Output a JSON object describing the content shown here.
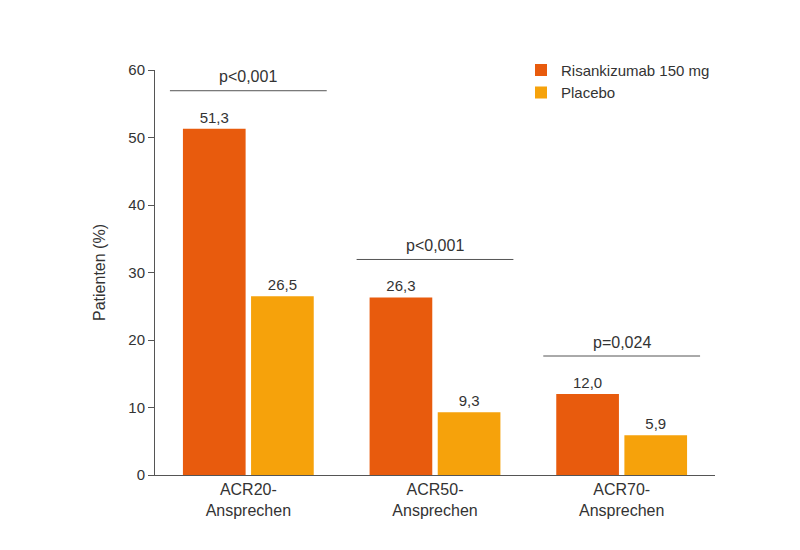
{
  "chart_data": {
    "type": "bar",
    "categories": [
      "ACR20-\nAnsprechen",
      "ACR50-\nAnsprechen",
      "ACR70-\nAnsprechen"
    ],
    "series": [
      {
        "name": "Risankizumab 150 mg",
        "color": "#e85b0d",
        "values": [
          51.3,
          26.3,
          12.0
        ],
        "value_labels": [
          "51,3",
          "26,3",
          "12,0"
        ]
      },
      {
        "name": "Placebo",
        "color": "#f6a20b",
        "values": [
          26.5,
          9.3,
          5.9
        ],
        "value_labels": [
          "26,5",
          "9,3",
          "5,9"
        ]
      }
    ],
    "y_label": "Patienten (%)",
    "ylim": [
      0,
      60
    ],
    "yticks": [
      0,
      10,
      20,
      30,
      40,
      50,
      60
    ],
    "grid": false,
    "legend": "upper right",
    "data_labels": true,
    "annotations": [
      {
        "category": "ACR20-\nAnsprechen",
        "text": "p<0,001"
      },
      {
        "category": "ACR50-\nAnsprechen",
        "text": "p<0,001"
      },
      {
        "category": "ACR70-\nAnsprechen",
        "text": "p=0,024"
      }
    ]
  }
}
